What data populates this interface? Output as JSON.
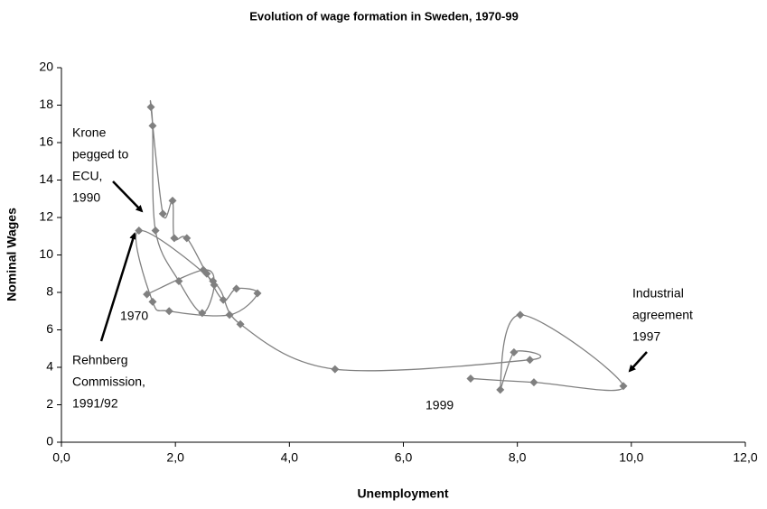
{
  "chart_data": {
    "type": "scatter",
    "title": "Evolution of wage formation in Sweden, 1970-99",
    "x_label": "Unemployment",
    "y_label": "Nominal Wages",
    "color": "#808080",
    "line": true,
    "x": [
      1.5,
      2.49,
      2.68,
      2.47,
      2.06,
      1.65,
      1.6,
      1.57,
      1.78,
      1.95,
      1.98,
      2.2,
      2.55,
      2.84,
      3.07,
      3.44,
      2.95,
      1.89,
      1.6,
      1.36,
      2.66,
      3.14,
      4.8,
      8.22,
      7.94,
      7.7,
      8.05,
      9.86,
      8.29,
      7.18
    ],
    "values": [
      7.9,
      9.2,
      8.4,
      6.9,
      8.6,
      11.3,
      16.9,
      17.9,
      12.2,
      12.9,
      10.9,
      10.9,
      9.0,
      7.6,
      8.2,
      7.95,
      6.8,
      7.0,
      7.5,
      11.3,
      8.6,
      6.3,
      3.9,
      4.4,
      4.8,
      2.8,
      6.8,
      3.0,
      3.2,
      3.4
    ],
    "xlim": [
      0,
      12
    ],
    "ylim": [
      0,
      20
    ],
    "xticks": [
      {
        "value": 0,
        "label": "0,0"
      },
      {
        "value": 2,
        "label": "2,0"
      },
      {
        "value": 4,
        "label": "4,0"
      },
      {
        "value": 6,
        "label": "6,0"
      },
      {
        "value": 8,
        "label": "8,0"
      },
      {
        "value": 10,
        "label": "10,0"
      },
      {
        "value": 12,
        "label": "12,0"
      }
    ],
    "yticks": [
      0,
      2,
      4,
      6,
      8,
      10,
      12,
      14,
      16,
      18,
      20
    ],
    "annotations": [
      {
        "lines": [
          "Krone",
          "pegged to",
          "ECU,",
          "1990"
        ]
      },
      {
        "lines": [
          "1970"
        ]
      },
      {
        "lines": [
          "Rehnberg",
          "Commission,",
          "1991/92"
        ]
      },
      {
        "lines": [
          "1999"
        ]
      },
      {
        "lines": [
          "Industrial",
          "agreement",
          "1997"
        ]
      }
    ]
  }
}
